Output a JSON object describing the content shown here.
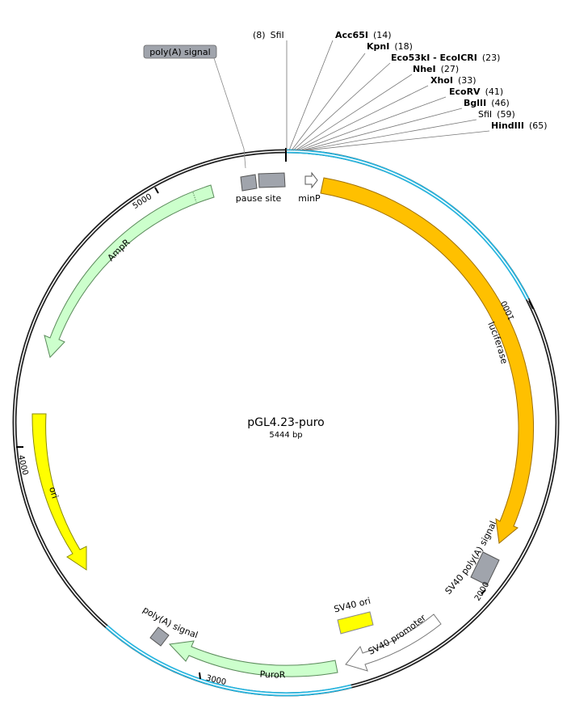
{
  "plasmid": {
    "name": "pGL4.23-puro",
    "size": "5444 bp"
  },
  "sites": [
    {
      "pos": "(8)",
      "name": "SfiI"
    },
    {
      "name": "Acc65I",
      "pos": "(14)"
    },
    {
      "name": "KpnI",
      "pos": "(18)"
    },
    {
      "name": "Eco53kI - EcoICRI",
      "pos": "(23)"
    },
    {
      "name": "NheI",
      "pos": "(27)"
    },
    {
      "name": "XhoI",
      "pos": "(33)"
    },
    {
      "name": "EcoRV",
      "pos": "(41)"
    },
    {
      "name": "BglII",
      "pos": "(46)"
    },
    {
      "name": "SfiI",
      "pos": "(59)"
    },
    {
      "name": "HindIII",
      "pos": "(65)"
    }
  ],
  "features": {
    "polya_top": "poly(A) signal",
    "pause_site": "pause site",
    "minp": "minP",
    "luciferase": "luciferase",
    "sv40_polya": "SV40 poly(A) signal",
    "sv40_promoter": "SV40 promoter",
    "sv40_ori": "SV40 ori",
    "puror": "PuroR",
    "polya_bottom": "poly(A) signal",
    "ori": "ori",
    "ampr": "AmpR"
  },
  "ticks": {
    "t1000": "1000",
    "t2000": "2000",
    "t3000": "3000",
    "t4000": "4000",
    "t5000": "5000"
  },
  "colors": {
    "backbone": "#222222",
    "insert": "#29b6e0",
    "luciferase": "#ffc000",
    "ori": "#ffff00",
    "resistance": "#ccffcc",
    "misc": "#a0a4ac",
    "promoter": "#ffffff"
  }
}
